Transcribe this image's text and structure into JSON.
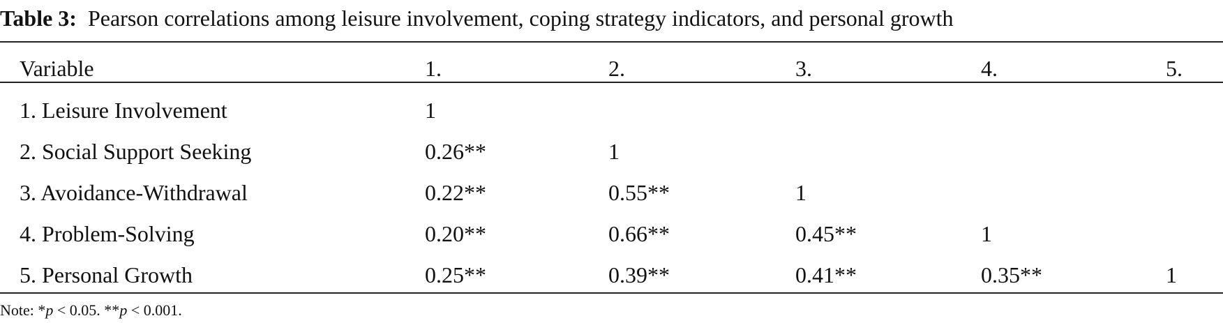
{
  "caption": {
    "label": "Table 3:",
    "text": "Pearson correlations among leisure involvement, coping strategy indicators, and personal growth"
  },
  "table": {
    "header": [
      "Variable",
      "1.",
      "2.",
      "3.",
      "4.",
      "5."
    ],
    "rows": [
      [
        "1. Leisure Involvement",
        "1"
      ],
      [
        "2. Social Support Seeking",
        "0.26**",
        "1"
      ],
      [
        "3. Avoidance-Withdrawal",
        "0.22**",
        "0.55**",
        "1"
      ],
      [
        "4. Problem-Solving",
        "0.20**",
        "0.66**",
        "0.45**",
        "1"
      ],
      [
        "5. Personal Growth",
        "0.25**",
        "0.39**",
        "0.41**",
        "0.35**",
        "1"
      ]
    ]
  },
  "note": [
    "Note: *",
    "p",
    " < 0.05. **",
    "p",
    " < 0.001."
  ]
}
